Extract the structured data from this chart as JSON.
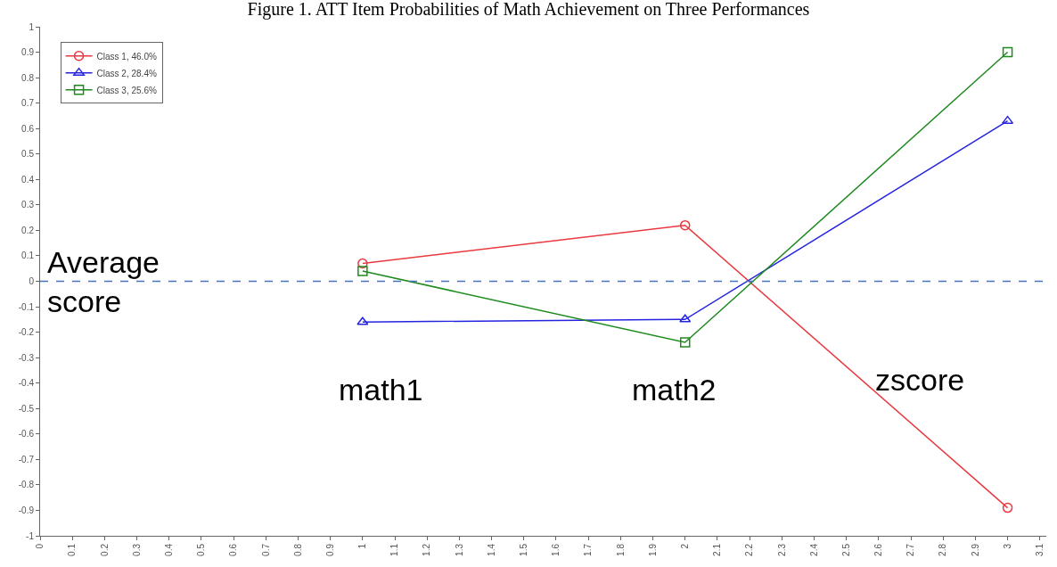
{
  "chart_data": {
    "type": "line",
    "title": "Figure 1. ATT Item Probabilities of Math Achievement on Three Performances",
    "x": [
      1,
      2,
      3
    ],
    "series": [
      {
        "name": "Class 1, 46.0%",
        "color": "#e8393f",
        "values": [
          0.07,
          0.22,
          -0.89
        ],
        "marker": "circle"
      },
      {
        "name": "Class 2, 28.4%",
        "color": "#2424e0",
        "values": [
          -0.16,
          -0.15,
          0.63
        ],
        "marker": "triangle"
      },
      {
        "name": "Class 3, 25.6%",
        "color": "#1e8a1e",
        "values": [
          0.04,
          -0.24,
          0.9
        ],
        "marker": "square"
      }
    ],
    "xlim": [
      0,
      3.12
    ],
    "xticks": [
      0,
      0.1,
      0.2,
      0.3,
      0.4,
      0.5,
      0.6,
      0.7,
      0.8,
      0.9,
      1,
      1.1,
      1.2,
      1.3,
      1.4,
      1.5,
      1.6,
      1.7,
      1.8,
      1.9,
      2,
      2.1,
      2.2,
      2.3,
      2.4,
      2.5,
      2.6,
      2.7,
      2.8,
      2.9,
      3,
      3.1
    ],
    "ylim": [
      -1,
      1
    ],
    "yticks": [
      -1,
      -0.9,
      -0.8,
      -0.7,
      -0.6,
      -0.5,
      -0.4,
      -0.3,
      -0.2,
      -0.1,
      0,
      0.1,
      0.2,
      0.3,
      0.4,
      0.5,
      0.6,
      0.7,
      0.8,
      0.9,
      1
    ],
    "ref_lines": [
      {
        "axis": "y",
        "value": 0,
        "color": "#4472c4",
        "line_style": "dashed",
        "label": "Average score"
      }
    ],
    "annotations": [
      "math1",
      "math2",
      "zscore"
    ],
    "legend": "top left"
  }
}
